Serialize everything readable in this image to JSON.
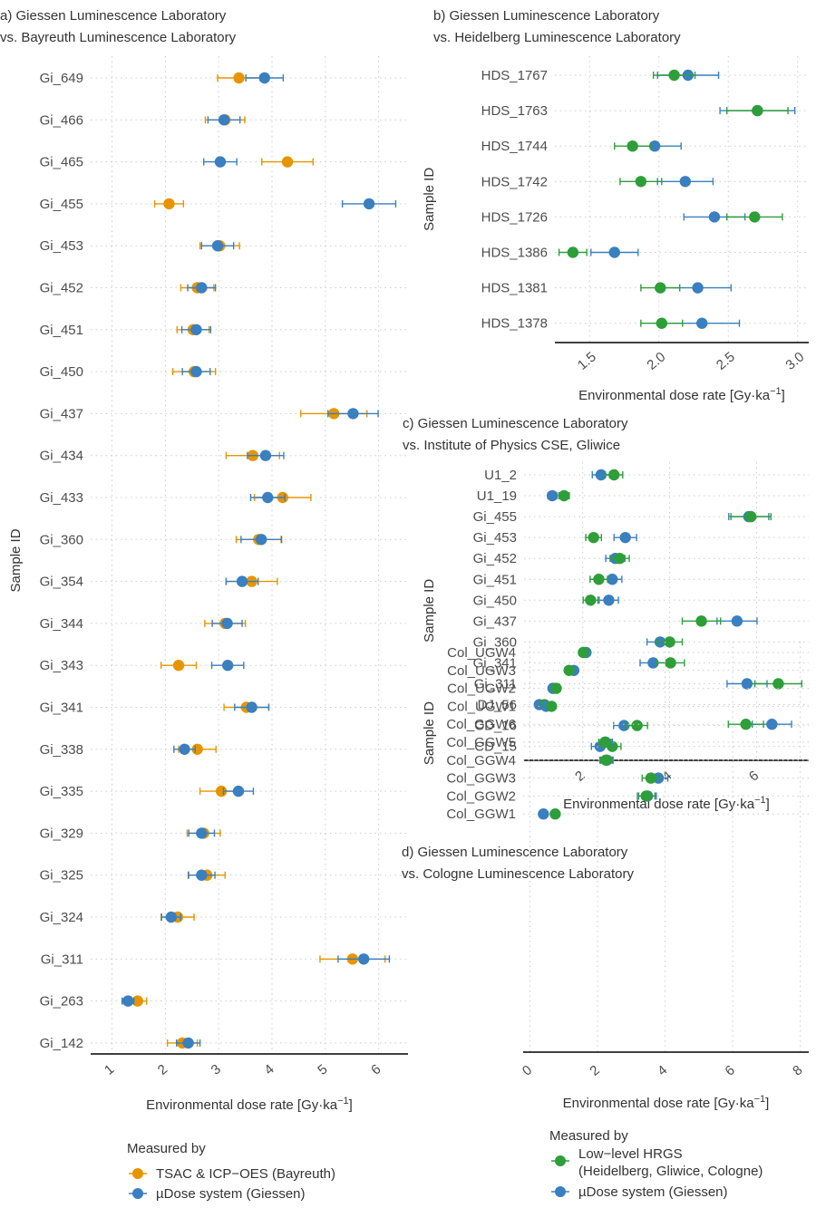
{
  "colors": {
    "bayreuth": "#e69500",
    "giessen": "#3a7fbf",
    "hrgs": "#2e9e38"
  },
  "legends": [
    {
      "title": "Measured by",
      "items": [
        {
          "label": "TSAC & ICP−OES (Bayreuth)",
          "color": "bayreuth"
        },
        {
          "label": "µDose system (Giessen)",
          "color": "giessen"
        }
      ]
    },
    {
      "title": "Measured by",
      "items": [
        {
          "label": "Low−level HRGS",
          "label2": "(Heidelberg, Gliwice, Cologne)",
          "color": "hrgs"
        },
        {
          "label": "µDose system (Giessen)",
          "color": "giessen"
        }
      ]
    }
  ],
  "chart_data": [
    {
      "type": "scatter",
      "panel": "a",
      "title_lines": [
        "a) Giessen Luminescence Laboratory",
        "vs. Bayreuth Luminescence Laboratory"
      ],
      "xlabel": "Environmental dose rate [Gy·ka",
      "xlabel_sup": "−1",
      "xlabel_end": "]",
      "ylabel": "Sample ID",
      "xlim": [
        0.6,
        6.55
      ],
      "xticks": [
        1,
        2,
        3,
        4,
        5,
        6
      ],
      "categories": [
        "Gi_649",
        "Gi_466",
        "Gi_465",
        "Gi_455",
        "Gi_453",
        "Gi_452",
        "Gi_451",
        "Gi_450",
        "Gi_437",
        "Gi_434",
        "Gi_433",
        "Gi_360",
        "Gi_354",
        "Gi_344",
        "Gi_343",
        "Gi_341",
        "Gi_338",
        "Gi_335",
        "Gi_329",
        "Gi_325",
        "Gi_324",
        "Gi_311",
        "Gi_263",
        "Gi_142"
      ],
      "series": [
        {
          "name": "TSAC & ICP−OES (Bayreuth)",
          "color": "bayreuth",
          "values": [
            3.38,
            3.12,
            4.29,
            2.07,
            3.02,
            2.6,
            2.52,
            2.54,
            5.16,
            3.64,
            4.2,
            3.75,
            3.62,
            3.12,
            2.25,
            3.52,
            2.6,
            3.05,
            2.72,
            2.78,
            2.23,
            5.51,
            1.48,
            2.32
          ],
          "err": [
            0.4,
            0.37,
            0.48,
            0.27,
            0.37,
            0.31,
            0.3,
            0.4,
            0.62,
            0.5,
            0.53,
            0.42,
            0.48,
            0.38,
            0.33,
            0.42,
            0.35,
            0.4,
            0.31,
            0.34,
            0.31,
            0.61,
            0.17,
            0.28
          ]
        },
        {
          "name": "µDose system (Giessen)",
          "color": "giessen",
          "values": [
            3.86,
            3.1,
            3.03,
            5.82,
            2.98,
            2.68,
            2.58,
            2.58,
            5.52,
            3.88,
            3.92,
            3.8,
            3.44,
            3.16,
            3.17,
            3.62,
            2.36,
            3.37,
            2.68,
            2.68,
            2.11,
            5.72,
            1.3,
            2.43
          ],
          "err": [
            0.35,
            0.3,
            0.31,
            0.5,
            0.3,
            0.26,
            0.27,
            0.26,
            0.47,
            0.34,
            0.32,
            0.38,
            0.3,
            0.28,
            0.3,
            0.32,
            0.2,
            0.28,
            0.24,
            0.25,
            0.18,
            0.48,
            0.11,
            0.22
          ]
        }
      ]
    },
    {
      "type": "scatter",
      "panel": "b",
      "title_lines": [
        "b) Giessen Luminescence Laboratory",
        "vs. Heidelberg Luminescence Laboratory"
      ],
      "xlabel": "Environmental dose rate [Gy·ka",
      "xlabel_sup": "−1",
      "xlabel_end": "]",
      "ylabel": "Sample ID",
      "xlim": [
        1.25,
        3.08
      ],
      "xticks": [
        1.5,
        2.0,
        2.5,
        3.0
      ],
      "xtick_labels": [
        "1.5",
        "2.0",
        "2.5",
        "3.0"
      ],
      "categories": [
        "HDS_1767",
        "HDS_1763",
        "HDS_1744",
        "HDS_1742",
        "HDS_1726",
        "HDS_1386",
        "HDS_1381",
        "HDS_1378"
      ],
      "series": [
        {
          "name": "µDose system (Giessen)",
          "color": "giessen",
          "values": [
            2.21,
            2.71,
            1.97,
            2.19,
            2.4,
            1.68,
            2.28,
            2.31
          ],
          "err": [
            0.22,
            0.27,
            0.19,
            0.2,
            0.22,
            0.17,
            0.24,
            0.27
          ]
        },
        {
          "name": "Low−level HRGS",
          "color": "hrgs",
          "values": [
            2.11,
            2.71,
            1.81,
            1.87,
            2.69,
            1.38,
            2.01,
            2.02
          ],
          "err": [
            0.15,
            0.22,
            0.13,
            0.15,
            0.2,
            0.1,
            0.14,
            0.15
          ]
        }
      ]
    },
    {
      "type": "scatter",
      "panel": "c",
      "title_lines": [
        "c) Giessen Luminescence Laboratory",
        "vs. Institute of Physics CSE, Gliwice"
      ],
      "xlabel": "Environmental dose rate [Gy·ka",
      "xlabel_sup": "−1",
      "xlabel_end": "]",
      "ylabel": "Sample ID",
      "xlim": [
        0.65,
        7.2
      ],
      "xticks": [
        2,
        4,
        6
      ],
      "categories": [
        "U1_2",
        "U1_19",
        "Gi_455",
        "Gi_453",
        "Gi_452",
        "Gi_451",
        "Gi_450",
        "Gi_437",
        "Gi_360",
        "Gi_341",
        "Gi_311",
        "DJ_56",
        "CD_16",
        "CD_15"
      ],
      "series": [
        {
          "name": "µDose system (Giessen)",
          "color": "giessen",
          "values": [
            2.42,
            1.3,
            5.82,
            2.98,
            2.75,
            2.68,
            2.6,
            5.55,
            3.78,
            3.62,
            5.78,
            1.0,
            2.95,
            2.4
          ],
          "err": [
            0.2,
            0.1,
            0.46,
            0.26,
            0.22,
            0.22,
            0.22,
            0.46,
            0.3,
            0.3,
            0.46,
            0.06,
            0.24,
            0.2
          ]
        },
        {
          "name": "Low−level HRGS",
          "color": "hrgs",
          "values": [
            2.72,
            1.57,
            5.87,
            2.25,
            2.85,
            2.37,
            2.18,
            4.73,
            4.0,
            4.02,
            6.5,
            1.12,
            3.25,
            2.68
          ],
          "err": [
            0.2,
            0.12,
            0.46,
            0.18,
            0.22,
            0.2,
            0.17,
            0.44,
            0.29,
            0.32,
            0.54,
            0.07,
            0.24,
            0.2
          ]
        }
      ]
    },
    {
      "type": "scatter",
      "panel": "d",
      "title_lines": [
        "d) Giessen Luminescence Laboratory",
        "vs. Cologne Luminescence Laboratory"
      ],
      "xlabel": "Environmental dose rate [Gy·ka",
      "xlabel_sup": "−1",
      "xlabel_end": "]",
      "ylabel": "Sample ID",
      "xlim": [
        -0.2,
        8.25
      ],
      "xticks": [
        0,
        2,
        4,
        6,
        8
      ],
      "categories": [
        "Col_UGW4",
        "Col_UGW3",
        "Col_UGW2",
        "Col_UGW1",
        "Col_GGW6",
        "Col_GGW5",
        "Col_GGW4",
        "Col_GGW3",
        "Col_GGW2",
        "Col_GGW1"
      ],
      "series": [
        {
          "name": "µDose system (Giessen)",
          "color": "giessen",
          "values": [
            1.66,
            1.3,
            0.68,
            0.48,
            7.16,
            2.24,
            2.28,
            3.8,
            3.48,
            0.4
          ],
          "err": [
            0.12,
            0.08,
            0.06,
            0.05,
            0.58,
            0.2,
            0.18,
            0.28,
            0.26,
            0.04
          ]
        },
        {
          "name": "Low−level HRGS",
          "color": "hrgs",
          "values": [
            1.58,
            1.16,
            0.78,
            0.64,
            6.39,
            2.22,
            2.25,
            3.58,
            3.44,
            0.75
          ],
          "err": [
            0.1,
            0.08,
            0.06,
            0.05,
            0.52,
            0.18,
            0.18,
            0.26,
            0.26,
            0.05
          ]
        }
      ]
    }
  ]
}
